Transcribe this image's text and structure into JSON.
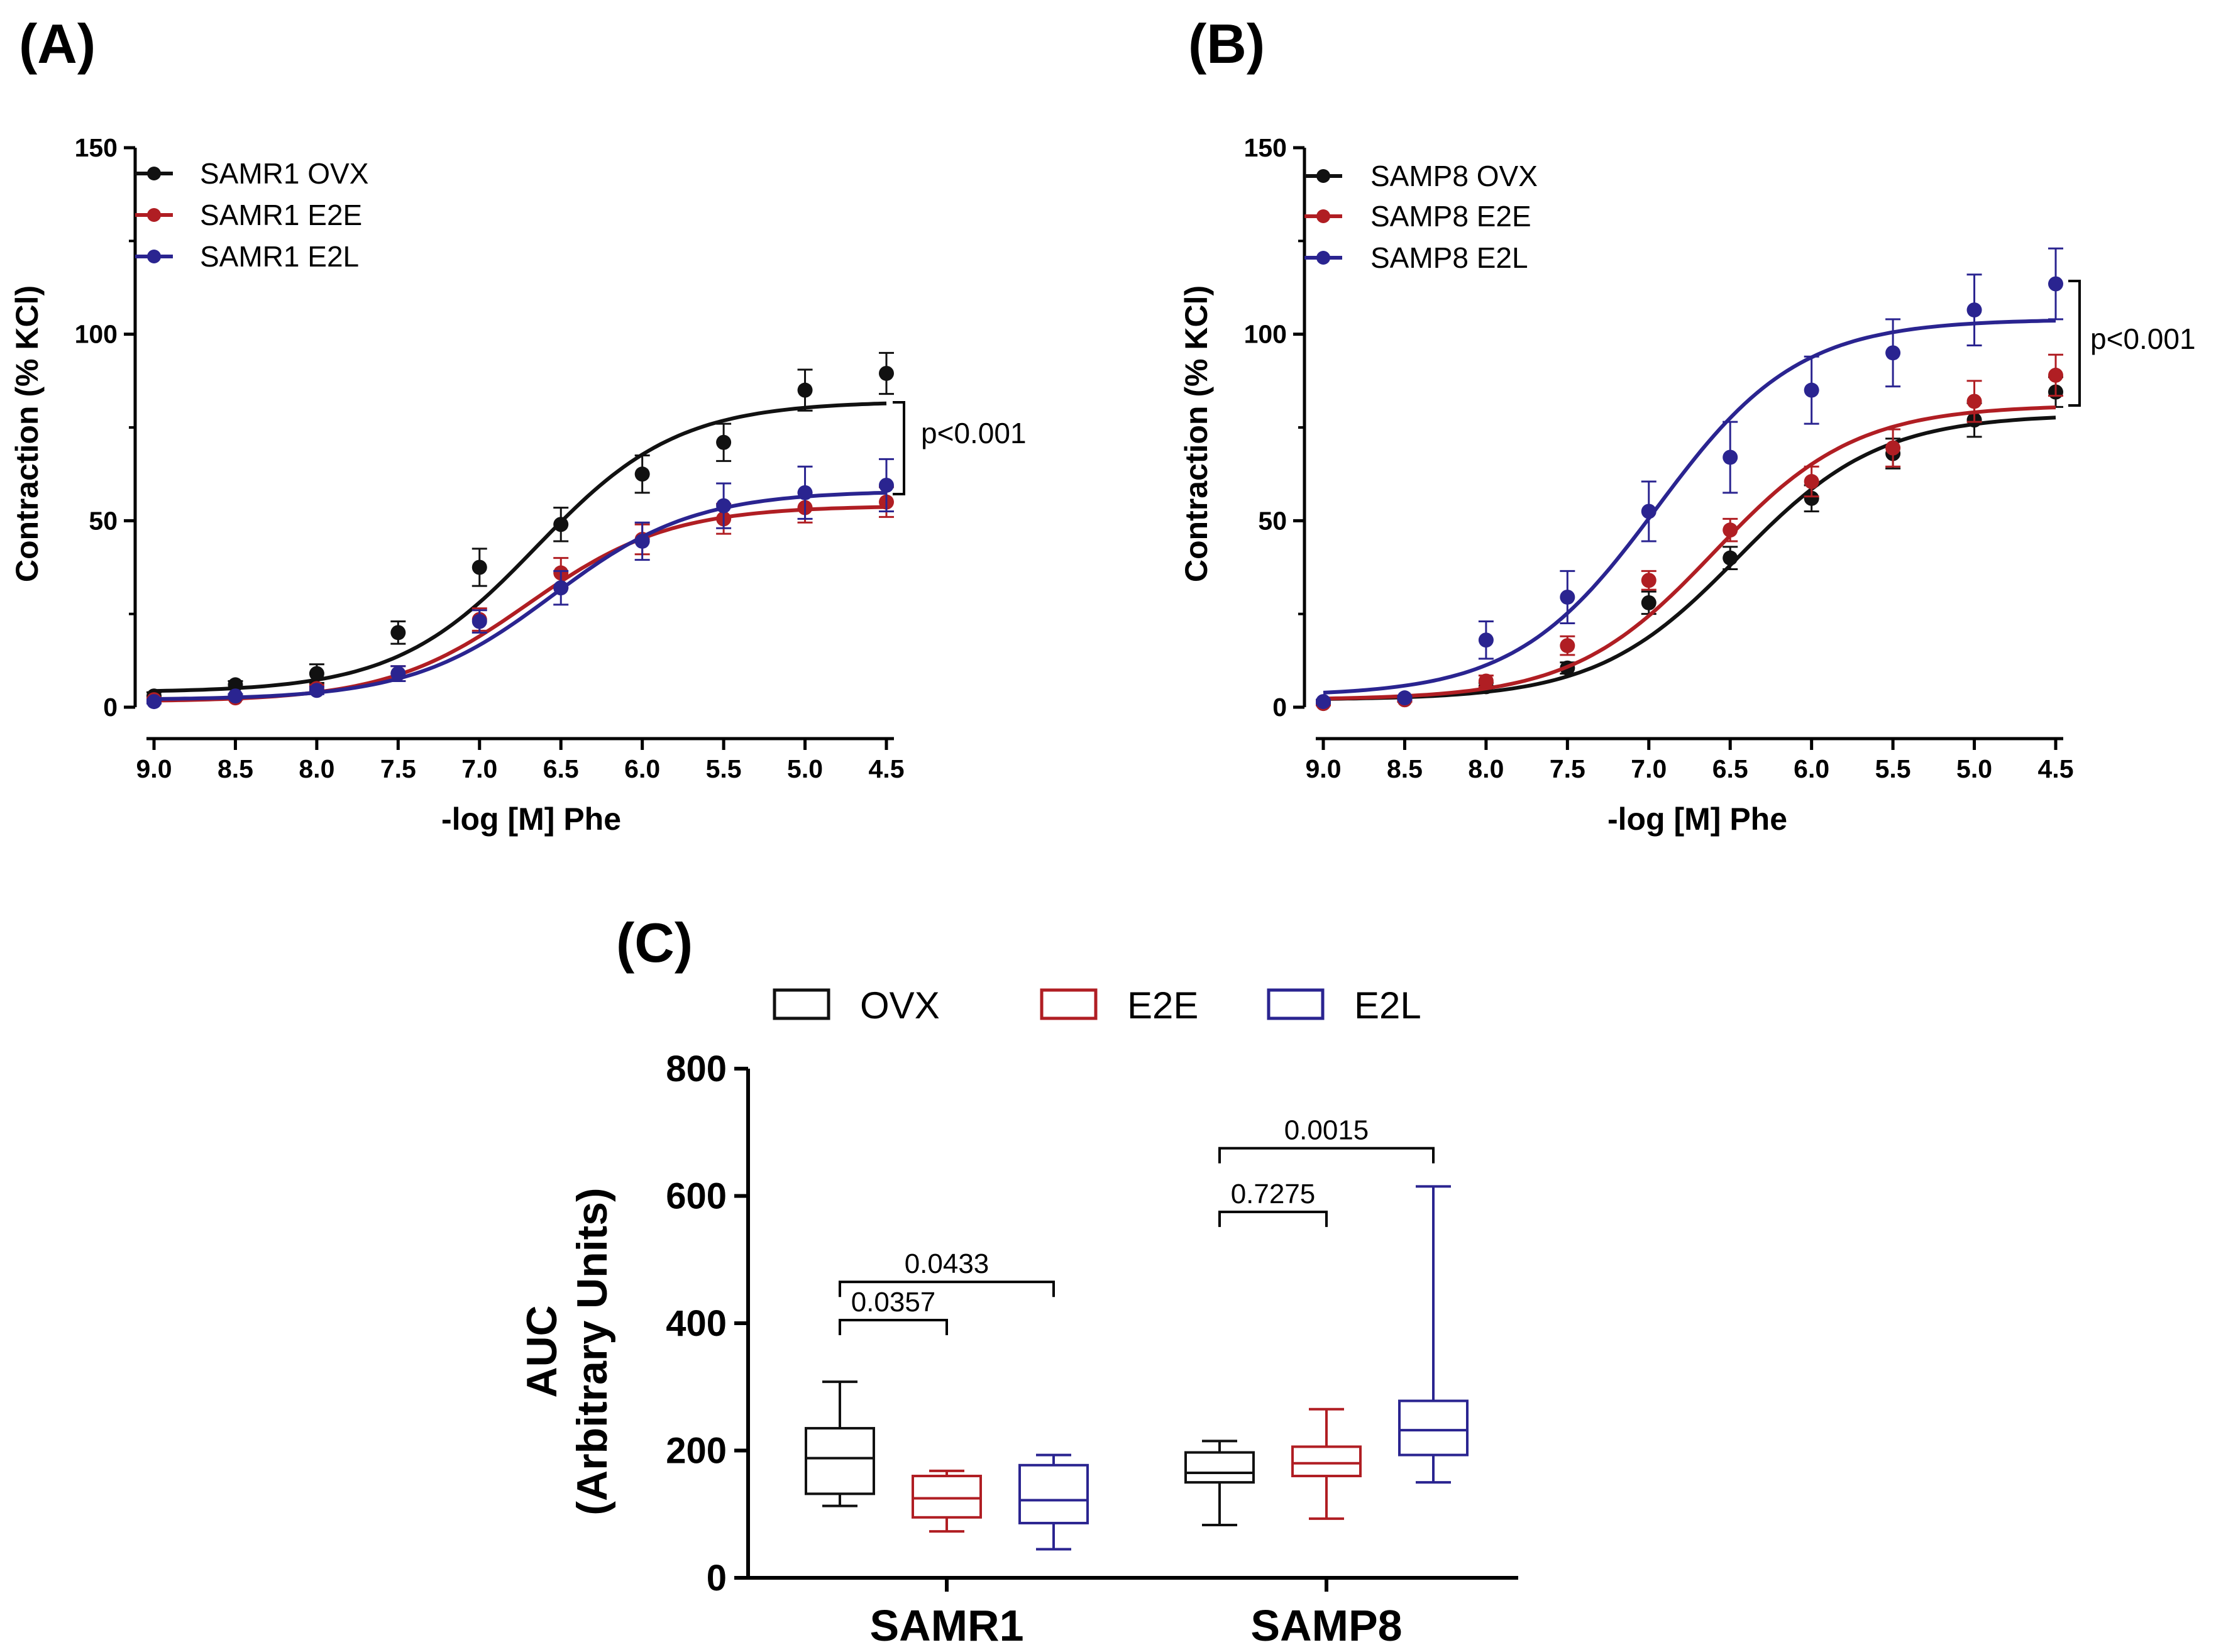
{
  "colors": {
    "OVX": "#111111",
    "E2E": "#b01e23",
    "E2L": "#2a2490"
  },
  "chart_data": [
    {
      "panel": "(A)",
      "type": "line",
      "xlabel": "-log [M] Phe",
      "ylabel": "Contraction (% KCl)",
      "xlim": [
        9.0,
        4.5
      ],
      "ylim": [
        0,
        150
      ],
      "x_ticks": [
        "9.0",
        "8.5",
        "8.0",
        "7.5",
        "7.0",
        "6.5",
        "6.0",
        "5.5",
        "5.0",
        "4.5"
      ],
      "y_ticks": [
        "0",
        "50",
        "100",
        "150"
      ],
      "x": [
        9.0,
        8.5,
        8.0,
        7.5,
        7.0,
        6.5,
        6.0,
        5.5,
        5.0,
        4.5
      ],
      "series": [
        {
          "name": "SAMR1 OVX",
          "group": "OVX",
          "values": [
            3,
            6,
            9,
            20,
            37.5,
            49,
            62.5,
            71,
            85,
            89.5
          ],
          "errors": [
            1,
            1,
            2.5,
            3,
            5,
            4.5,
            5,
            5,
            5.5,
            5.5
          ],
          "fit": {
            "bottom": 4,
            "top": 82,
            "logEC50": 6.65,
            "hill": 1.0
          }
        },
        {
          "name": "SAMR1 E2E",
          "group": "E2E",
          "values": [
            2,
            2.5,
            5,
            9,
            23.5,
            36,
            45,
            50.5,
            53.5,
            55
          ],
          "errors": [
            0.5,
            0.5,
            1,
            2,
            3,
            4,
            4,
            4,
            4,
            4
          ],
          "fit": {
            "bottom": 1.5,
            "top": 54,
            "logEC50": 6.7,
            "hill": 1.0
          }
        },
        {
          "name": "SAMR1 E2L",
          "group": "E2L",
          "values": [
            1.5,
            3,
            4.5,
            9,
            23,
            32,
            44.5,
            54,
            57.5,
            59.5
          ],
          "errors": [
            0.5,
            0.5,
            1,
            2,
            3,
            4.5,
            5,
            6,
            7,
            7
          ],
          "fit": {
            "bottom": 2,
            "top": 58,
            "logEC50": 6.55,
            "hill": 1.0
          }
        }
      ],
      "annotation": "p<0.001",
      "legend": "top-left"
    },
    {
      "panel": "(B)",
      "type": "line",
      "xlabel": "-log [M] Phe",
      "ylabel": "Contraction (% KCl)",
      "xlim": [
        9.0,
        4.5
      ],
      "ylim": [
        0,
        150
      ],
      "x_ticks": [
        "9.0",
        "8.5",
        "8.0",
        "7.5",
        "7.0",
        "6.5",
        "6.0",
        "5.5",
        "5.0",
        "4.5"
      ],
      "y_ticks": [
        "0",
        "50",
        "100",
        "150"
      ],
      "x": [
        9.0,
        8.5,
        8.0,
        7.5,
        7.0,
        6.5,
        6.0,
        5.5,
        5.0,
        4.5
      ],
      "series": [
        {
          "name": "SAMP8 OVX",
          "group": "OVX",
          "values": [
            1,
            2,
            5.5,
            10.5,
            28,
            40,
            56,
            68,
            77,
            84.5
          ],
          "errors": [
            0.5,
            0.5,
            1,
            1.5,
            3,
            3,
            3.5,
            4,
            4.5,
            4
          ],
          "fit": {
            "bottom": 2,
            "top": 78.5,
            "logEC50": 6.45,
            "hill": 1.0
          }
        },
        {
          "name": "SAMP8 E2E",
          "group": "E2E",
          "values": [
            1,
            2,
            7,
            16.5,
            34,
            47.5,
            60.5,
            69.5,
            82,
            89
          ],
          "errors": [
            0.5,
            0.5,
            1.5,
            2.5,
            2.5,
            3,
            4,
            5,
            5.5,
            5.5
          ],
          "fit": {
            "bottom": 2,
            "top": 81,
            "logEC50": 6.6,
            "hill": 1.0
          }
        },
        {
          "name": "SAMP8 E2L",
          "group": "E2L",
          "values": [
            1.5,
            2.5,
            18,
            29.5,
            52.5,
            67,
            85,
            95,
            106.5,
            113.5
          ],
          "errors": [
            0.5,
            0.5,
            5,
            7,
            8,
            9.5,
            9,
            9,
            9.5,
            9.5
          ],
          "fit": {
            "bottom": 3,
            "top": 104,
            "logEC50": 6.95,
            "hill": 1.0
          }
        }
      ],
      "annotation": "p<0.001",
      "legend": "top-left"
    },
    {
      "panel": "(C)",
      "type": "box",
      "ylabel_line1": "AUC",
      "ylabel_line2": "(Arbitrary Units)",
      "ylim": [
        0,
        800
      ],
      "y_ticks": [
        "0",
        "200",
        "400",
        "600",
        "800"
      ],
      "categories": [
        "SAMR1",
        "SAMP8"
      ],
      "legend": [
        "OVX",
        "E2E",
        "E2L"
      ],
      "boxes": [
        {
          "category": "SAMR1",
          "group": "OVX",
          "min": 113,
          "q1": 132,
          "median": 188,
          "q3": 235,
          "max": 308
        },
        {
          "category": "SAMR1",
          "group": "E2E",
          "min": 73,
          "q1": 95,
          "median": 125,
          "q3": 160,
          "max": 168
        },
        {
          "category": "SAMR1",
          "group": "E2L",
          "min": 45,
          "q1": 86,
          "median": 122,
          "q3": 177,
          "max": 193
        },
        {
          "category": "SAMP8",
          "group": "OVX",
          "min": 83,
          "q1": 150,
          "median": 165,
          "q3": 197,
          "max": 215
        },
        {
          "category": "SAMP8",
          "group": "E2E",
          "min": 93,
          "q1": 160,
          "median": 180,
          "q3": 206,
          "max": 265
        },
        {
          "category": "SAMP8",
          "group": "E2L",
          "min": 150,
          "q1": 193,
          "median": 232,
          "q3": 278,
          "max": 615
        }
      ],
      "comparisons": [
        {
          "category": "SAMR1",
          "from": "OVX",
          "to": "E2E",
          "level": 405,
          "label": "0.0357"
        },
        {
          "category": "SAMR1",
          "from": "OVX",
          "to": "E2L",
          "level": 465,
          "label": "0.0433"
        },
        {
          "category": "SAMP8",
          "from": "OVX",
          "to": "E2E",
          "level": 575,
          "label": "0.7275"
        },
        {
          "category": "SAMP8",
          "from": "OVX",
          "to": "E2L",
          "level": 675,
          "label": "0.0015"
        }
      ]
    }
  ]
}
